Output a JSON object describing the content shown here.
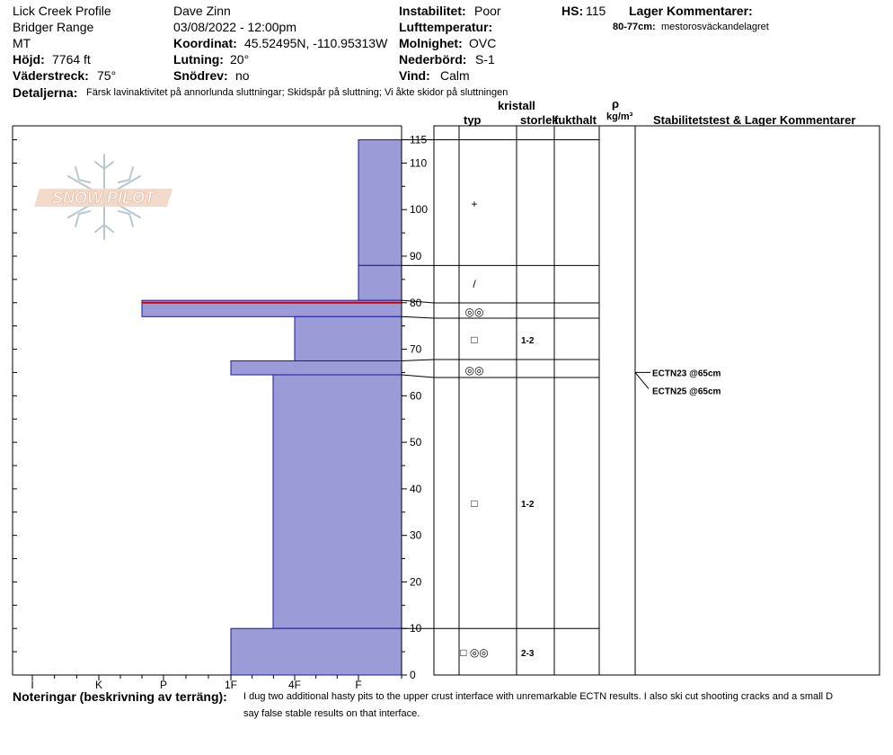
{
  "header": {
    "profile_name": "Lick Creek Profile",
    "range": "Bridger Range",
    "state": "MT",
    "elevation_label": "Höjd:",
    "elevation_value": "7764 ft",
    "aspect_label": "Väderstreck:",
    "aspect_value": "75°",
    "observer": "Dave Zinn",
    "datetime": "03/08/2022 - 12:00pm",
    "coord_label": "Koordinat:",
    "coord_value": "45.52495N, -110.95313W",
    "slope_label": "Lutning:",
    "slope_value": "20°",
    "drift_label": "Snödrev:",
    "drift_value": "no",
    "instability_label": "Instabilitet:",
    "instability_value": "Poor",
    "airtemp_label": "Lufttemperatur:",
    "airtemp_value": "",
    "cloud_label": "Molnighet:",
    "cloud_value": "OVC",
    "precip_label": "Nederbörd:",
    "precip_value": "S-1",
    "wind_label": "Vind:",
    "wind_value": "Calm",
    "hs_label": "HS:",
    "hs_value": "115",
    "layer_comments_label": "Lager Kommentarer:",
    "layer_comment_range": "80-77cm:",
    "layer_comment_text": "mestorosväckandelagret",
    "details_label": "Detaljerna:",
    "details_value": "Färsk lavinaktivitet på annorlunda sluttningar; Skidspår på sluttning; Vi åkte skidor på sluttningen"
  },
  "logo_text": "SNOW PILOT",
  "columns": {
    "type": "typ",
    "crystal_line1": "kristall",
    "crystal_line2": "storlek",
    "moisture": "fukthalt",
    "density_symbol": "ρ",
    "density_unit": "kg/m³",
    "stability": "Stabilitetstest & Lager Kommentarer"
  },
  "notes_label": "Noteringar (beskrivning av terräng):",
  "notes_line1": "I dug two additional hasty pits to the upper crust interface with unremarkable ECTN results. I also ski cut shooting cracks and a small D",
  "notes_line2": "say false stable results on that interface.",
  "colors": {
    "fill": "#9b9bd8",
    "stroke": "#1a1a9a",
    "weak_layer": "#d40000"
  },
  "chart_data": {
    "type": "bar",
    "hardness_scale": [
      "I",
      "K",
      "P",
      "1F",
      "4F",
      "F"
    ],
    "depth_range_cm": [
      0,
      115
    ],
    "depth_ticks": [
      0,
      10,
      20,
      30,
      40,
      50,
      60,
      70,
      80,
      90,
      100,
      110,
      115
    ],
    "layers": [
      {
        "top": 115,
        "bottom": 88,
        "hardness": "F",
        "grain": "+",
        "size": ""
      },
      {
        "top": 88,
        "bottom": 80.5,
        "hardness": "F",
        "grain": "/",
        "size": ""
      },
      {
        "top": 80.5,
        "bottom": 77,
        "hardness": "P+",
        "grain": "◎◎",
        "size": ""
      },
      {
        "top": 77,
        "bottom": 67.5,
        "hardness": "4F",
        "grain": "□",
        "size": "1-2"
      },
      {
        "top": 67.5,
        "bottom": 64.5,
        "hardness": "1F",
        "grain": "◎◎",
        "size": ""
      },
      {
        "top": 64.5,
        "bottom": 10,
        "hardness": "4F+",
        "grain": "□",
        "size": "1-2"
      },
      {
        "top": 10,
        "bottom": 0,
        "hardness": "1F",
        "grain": "□ ◎◎",
        "size": "2-3"
      }
    ],
    "weak_layer_depth": 80,
    "stability_tests": [
      {
        "label": "ECTN23 @65cm",
        "depth": 65
      },
      {
        "label": "ECTN25 @65cm",
        "depth": 65
      }
    ]
  }
}
